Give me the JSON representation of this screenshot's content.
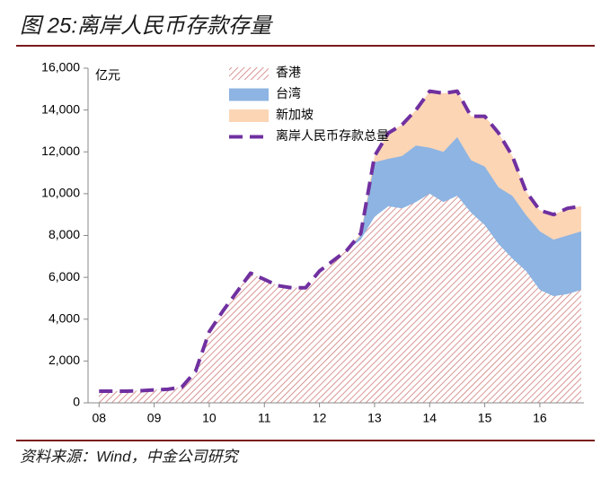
{
  "chart_data": {
    "type": "stacked_area",
    "title": "图 25:离岸人民币存款存量",
    "source": "资料来源：Wind，中金公司研究",
    "y_unit": "亿元",
    "x": [
      8.0,
      8.25,
      8.5,
      8.75,
      9.0,
      9.25,
      9.5,
      9.75,
      10.0,
      10.25,
      10.5,
      10.75,
      11.0,
      11.25,
      11.5,
      11.75,
      12.0,
      12.25,
      12.5,
      12.75,
      13.0,
      13.25,
      13.5,
      13.75,
      14.0,
      14.25,
      14.5,
      14.75,
      15.0,
      15.25,
      15.5,
      15.75,
      16.0,
      16.25,
      16.5,
      16.75
    ],
    "series": [
      {
        "name": "香港",
        "type": "area",
        "color": "#c0504d",
        "pattern": "hatch",
        "values": [
          560,
          560,
          560,
          580,
          620,
          650,
          750,
          1500,
          3400,
          4400,
          5300,
          6200,
          5900,
          5600,
          5500,
          5500,
          6300,
          6800,
          7300,
          7800,
          8900,
          9400,
          9300,
          9600,
          10000,
          9600,
          9900,
          9100,
          8500,
          7600,
          6900,
          6300,
          5400,
          5100,
          5200,
          5400
        ]
      },
      {
        "name": "台湾",
        "type": "area",
        "color": "#8db4e2",
        "values": [
          0,
          0,
          0,
          0,
          0,
          0,
          0,
          0,
          0,
          0,
          0,
          0,
          0,
          0,
          0,
          0,
          0,
          0,
          0,
          200,
          2600,
          2270,
          2500,
          2700,
          2200,
          2400,
          2800,
          2500,
          2800,
          2700,
          3000,
          2670,
          2800,
          2700,
          2800,
          2800
        ]
      },
      {
        "name": "新加坡",
        "type": "area",
        "color": "#fcd5b5",
        "values": [
          0,
          0,
          0,
          0,
          0,
          0,
          0,
          0,
          0,
          0,
          0,
          0,
          0,
          0,
          0,
          0,
          0,
          0,
          0,
          100,
          300,
          1230,
          1500,
          1700,
          2700,
          2800,
          2200,
          2100,
          2400,
          2600,
          1900,
          1130,
          1000,
          1200,
          1300,
          1200
        ]
      },
      {
        "name": "离岸人民币存款总量",
        "type": "line",
        "color": "#7030a0",
        "dashed": true,
        "values": [
          560,
          560,
          560,
          580,
          620,
          650,
          750,
          1500,
          3400,
          4400,
          5300,
          6200,
          5900,
          5600,
          5500,
          5500,
          6300,
          6800,
          7300,
          8100,
          11800,
          12900,
          13300,
          14000,
          14900,
          14800,
          14900,
          13700,
          13700,
          12900,
          11800,
          10100,
          9200,
          9000,
          9300,
          9400
        ]
      }
    ],
    "xlim": [
      7.8,
      16.8
    ],
    "xticks": [
      {
        "value": 8,
        "label": "08"
      },
      {
        "value": 9,
        "label": "09"
      },
      {
        "value": 10,
        "label": "10"
      },
      {
        "value": 11,
        "label": "11"
      },
      {
        "value": 12,
        "label": "12"
      },
      {
        "value": 13,
        "label": "13"
      },
      {
        "value": 14,
        "label": "14"
      },
      {
        "value": 15,
        "label": "15"
      },
      {
        "value": 16,
        "label": "16"
      }
    ],
    "ylim": [
      0,
      16000
    ],
    "yticks": [
      0,
      {
        "value": 2000,
        "label": "2,000"
      },
      {
        "value": 4000,
        "label": "4,000"
      },
      {
        "value": 6000,
        "label": "6,000"
      },
      {
        "value": 8000,
        "label": "8,000"
      },
      {
        "value": 10000,
        "label": "10,000"
      },
      {
        "value": 12000,
        "label": "12,000"
      },
      {
        "value": 14000,
        "label": "14,000"
      },
      {
        "value": 16000,
        "label": "16,000"
      }
    ],
    "grid": false
  }
}
